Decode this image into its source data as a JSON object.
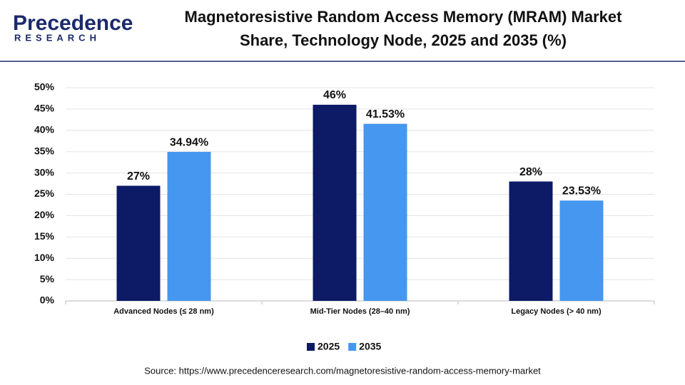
{
  "logo": {
    "name": "Precedence",
    "tagline": "RESEARCH"
  },
  "chart_data": {
    "type": "bar",
    "title": [
      "Magnetoresistive Random Access Memory (MRAM) Market",
      "Share, Technology Node, 2025 and 2035 (%)"
    ],
    "categories": [
      "Advanced Nodes (≤ 28 nm)",
      "Mid-Tier Nodes (28–40 nm)",
      "Legacy Nodes (> 40 nm)"
    ],
    "series": [
      {
        "name": "2025",
        "color": "#0d1a66",
        "values": [
          27,
          46,
          28
        ],
        "value_labels": [
          "27%",
          "46%",
          "28%"
        ]
      },
      {
        "name": "2035",
        "color": "#4597ef",
        "values": [
          34.94,
          41.53,
          23.53
        ],
        "value_labels": [
          "34.94%",
          "41.53%",
          "23.53%"
        ]
      }
    ],
    "ylim": [
      0,
      50
    ],
    "yticks": [
      {
        "value": 0,
        "label": "0%"
      },
      {
        "value": 5,
        "label": "5%"
      },
      {
        "value": 10,
        "label": "10%"
      },
      {
        "value": 15,
        "label": "15%"
      },
      {
        "value": 20,
        "label": "20%"
      },
      {
        "value": 25,
        "label": "25%"
      },
      {
        "value": 30,
        "label": "30%"
      },
      {
        "value": 35,
        "label": "35%"
      },
      {
        "value": 40,
        "label": "40%"
      },
      {
        "value": 45,
        "label": "45%"
      },
      {
        "value": 50,
        "label": "50%"
      }
    ],
    "grid": true,
    "legend": "bottom",
    "source": "Source: https://www.precedenceresearch.com/magnetoresistive-random-access-memory-market"
  }
}
